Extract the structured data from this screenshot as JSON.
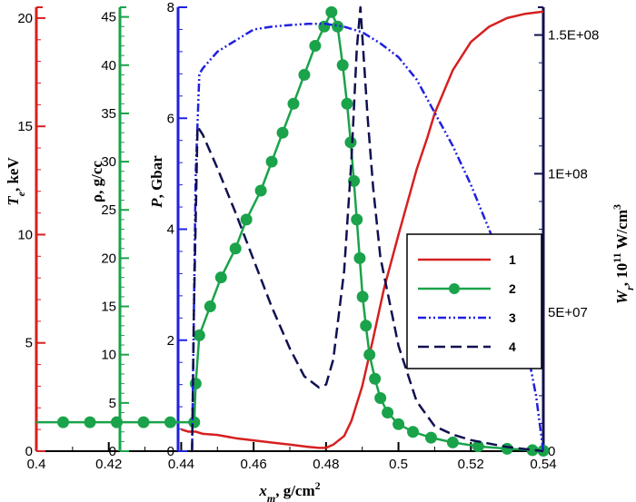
{
  "chart_data": {
    "type": "line",
    "x": {
      "label_main": "x",
      "label_sub": "m",
      "label_unit": ", g/cm",
      "label_sup": "2",
      "range": [
        0.4,
        0.54
      ],
      "ticks": [
        "0.4",
        "0.42",
        "0.44",
        "0.46",
        "0.48",
        "0.5",
        "0.52",
        "0.54"
      ]
    },
    "y_axes": [
      {
        "id": "Te",
        "label_main": "T",
        "label_sub": "e",
        "label_unit": ", keV",
        "color": "#d62020",
        "range": [
          0,
          20.5
        ],
        "ticks": [
          "0",
          "5",
          "10",
          "15",
          "20"
        ]
      },
      {
        "id": "rho",
        "label_main": "ρ, g/cc",
        "color": "#1aa34a",
        "range": [
          0,
          46
        ],
        "ticks": [
          "0",
          "5",
          "10",
          "15",
          "20",
          "25",
          "30",
          "35",
          "40",
          "45"
        ]
      },
      {
        "id": "P",
        "label_main": "P",
        "label_unit": ", Gbar",
        "color": "#2020e0",
        "range": [
          0,
          8
        ],
        "ticks": [
          "0",
          "2",
          "4",
          "6",
          "8"
        ]
      },
      {
        "id": "W",
        "label_main": "W",
        "label_sub": "r",
        "label_unit": ", 10",
        "label_sup": "11",
        "label_unit2": " W/cm",
        "label_sup2": "3",
        "color": "#101050",
        "range": [
          0,
          160000000.0
        ],
        "ticks": [
          "0",
          "5E+07",
          "1E+08",
          "1.5E+08"
        ]
      }
    ],
    "series": [
      {
        "name": "1",
        "axis": "Te",
        "color": "#d62020",
        "style": "solid",
        "x": [
          0.44,
          0.442,
          0.444,
          0.446,
          0.45,
          0.455,
          0.46,
          0.465,
          0.47,
          0.475,
          0.478,
          0.48,
          0.482,
          0.485,
          0.487,
          0.49,
          0.493,
          0.496,
          0.5,
          0.505,
          0.508,
          0.51,
          0.515,
          0.52,
          0.525,
          0.53,
          0.535,
          0.54
        ],
        "y": [
          1.0,
          0.9,
          0.9,
          0.8,
          0.75,
          0.6,
          0.5,
          0.4,
          0.3,
          0.2,
          0.15,
          0.15,
          0.3,
          0.7,
          1.4,
          3.0,
          5.2,
          7.5,
          10.0,
          13.0,
          14.5,
          15.6,
          17.6,
          18.9,
          19.6,
          20.0,
          20.2,
          20.3
        ]
      },
      {
        "name": "2",
        "axis": "rho",
        "color": "#1aa34a",
        "style": "solid-markers",
        "x": [
          0.4,
          0.4074,
          0.4148,
          0.4222,
          0.4296,
          0.437,
          0.4436,
          0.444,
          0.445,
          0.448,
          0.451,
          0.455,
          0.458,
          0.462,
          0.465,
          0.468,
          0.471,
          0.474,
          0.477,
          0.4795,
          0.4815,
          0.4832,
          0.4846,
          0.4858,
          0.4868,
          0.4877,
          0.4885,
          0.4893,
          0.4901,
          0.491,
          0.492,
          0.4935,
          0.495,
          0.497,
          0.5,
          0.504,
          0.509,
          0.515,
          0.522,
          0.53,
          0.537,
          0.54
        ],
        "y": [
          3.0,
          3.0,
          3.0,
          3.0,
          3.0,
          3.0,
          3.0,
          7.0,
          12.0,
          15.0,
          18.0,
          21.0,
          24.0,
          27.0,
          30.0,
          33.0,
          36.0,
          39.0,
          42.0,
          44.0,
          45.5,
          44.0,
          40.0,
          36.0,
          32.0,
          28.0,
          24.0,
          20.0,
          16.0,
          13.0,
          10.0,
          7.5,
          5.5,
          4.0,
          2.8,
          2.0,
          1.4,
          0.9,
          0.5,
          0.25,
          0.1,
          0.05
        ],
        "markers_from_index": 1
      },
      {
        "name": "3",
        "axis": "P",
        "color": "#2020e0",
        "style": "dashdotdot",
        "x": [
          0.443,
          0.4435,
          0.444,
          0.445,
          0.446,
          0.45,
          0.455,
          0.46,
          0.465,
          0.47,
          0.475,
          0.48,
          0.485,
          0.49,
          0.495,
          0.5,
          0.505,
          0.51,
          0.515,
          0.52,
          0.525,
          0.53,
          0.535,
          0.538,
          0.54
        ],
        "y": [
          0.0,
          2.5,
          5.0,
          6.8,
          6.9,
          7.2,
          7.4,
          7.6,
          7.65,
          7.68,
          7.7,
          7.7,
          7.65,
          7.55,
          7.35,
          7.1,
          6.7,
          6.1,
          5.5,
          4.8,
          4.0,
          3.2,
          2.0,
          1.0,
          0.0
        ]
      },
      {
        "name": "4",
        "axis": "W",
        "color": "#101050",
        "style": "dashed",
        "x": [
          0.443,
          0.4435,
          0.4445,
          0.446,
          0.45,
          0.455,
          0.46,
          0.465,
          0.47,
          0.474,
          0.478,
          0.48,
          0.482,
          0.485,
          0.487,
          0.4885,
          0.4895,
          0.49,
          0.4915,
          0.493,
          0.495,
          0.5,
          0.505,
          0.51,
          0.515,
          0.52,
          0.53,
          0.54
        ],
        "y": [
          0.0,
          50000000.0,
          117000000.0,
          114000000.0,
          102000000.0,
          86000000.0,
          69000000.0,
          52000000.0,
          37000000.0,
          27000000.0,
          23000000.0,
          24000000.0,
          33000000.0,
          65000000.0,
          105000000.0,
          145000000.0,
          160000000.0,
          150000000.0,
          120000000.0,
          95000000.0,
          70000000.0,
          38000000.0,
          18000000.0,
          9000000.0,
          6000000.0,
          4000000.0,
          1500000.0,
          0.0
        ]
      }
    ],
    "legend": {
      "placement": "right-middle",
      "entries": [
        "1",
        "2",
        "3",
        "4"
      ]
    }
  }
}
